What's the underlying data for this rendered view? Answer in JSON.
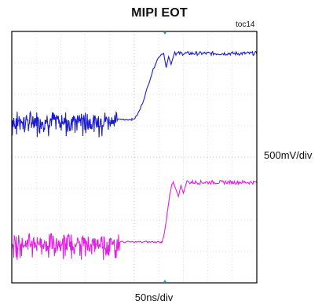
{
  "chart_data": {
    "type": "line",
    "title": "MIPI EOT",
    "tag": "toc14",
    "xlabel": "50ns/div",
    "ylabel": "500mV/div",
    "x_divisions": 10,
    "y_divisions": 8,
    "grid": true,
    "xlim": [
      0,
      10
    ],
    "series": [
      {
        "color": "#1a1ad6",
        "style": "step-with-noise",
        "points": [
          [
            0,
            5.2
          ],
          [
            4.9,
            5.2
          ],
          [
            6.2,
            7.3
          ],
          [
            10,
            7.3
          ]
        ],
        "noise_x_range": [
          0,
          4.3
        ],
        "ringing_x": 6.3
      },
      {
        "color": "#e020e0",
        "style": "step-with-noise",
        "points": [
          [
            0,
            1.3
          ],
          [
            6.1,
            1.3
          ],
          [
            6.6,
            3.2
          ],
          [
            10,
            3.2
          ]
        ],
        "noise_x_range": [
          0,
          4.4
        ],
        "ringing_x": 6.8
      }
    ]
  }
}
